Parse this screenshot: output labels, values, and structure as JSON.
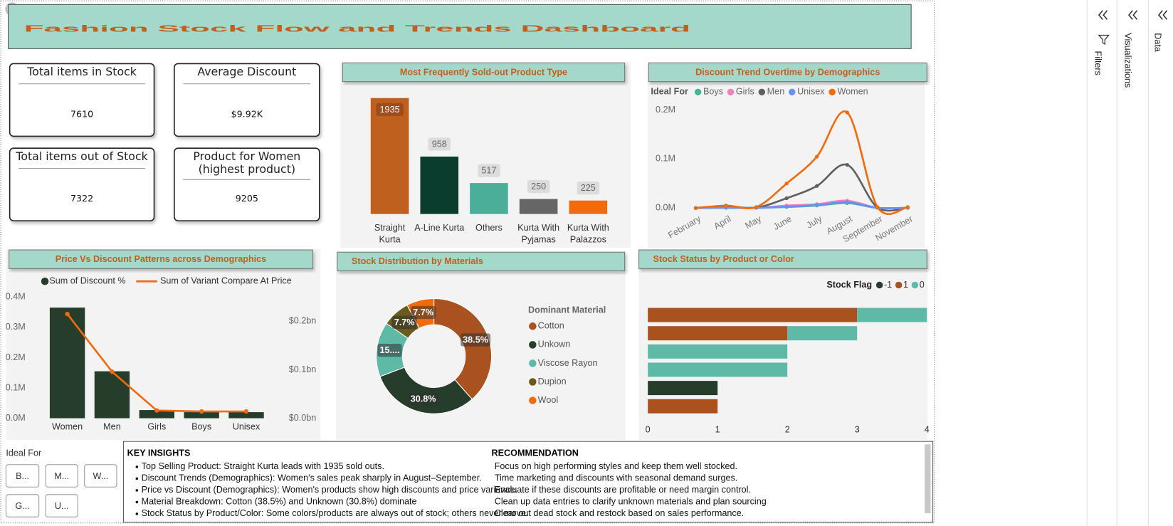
{
  "title": "Fashion Stock Flow and Trends Dashboard",
  "kpis": [
    {
      "label": "Total items in Stock",
      "value": 7610
    },
    {
      "label": "Average Discount",
      "value": "$9.92K"
    },
    {
      "label": "Total items out of Stock",
      "value": 7322
    },
    {
      "label": "Product for Women (highest product)",
      "value": 9205
    }
  ],
  "chart_data": [
    {
      "type": "bar",
      "title": "Most Frequently Sold-out Product Type",
      "categories": [
        "Straight Kurta",
        "A-Line Kurta",
        "Others",
        "Kurta With Pyjamas",
        "Kurta With Palazzos"
      ],
      "values": [
        1935,
        958,
        517,
        250,
        225
      ],
      "colors": [
        "#c0601f",
        "#0b3d2e",
        "#4aae98",
        "#666666",
        "#f26a0c"
      ]
    },
    {
      "type": "line",
      "title": "Discount Trend Overtime by Demographics",
      "legend_title": "Ideal For",
      "categories": [
        "February",
        "April",
        "May",
        "June",
        "July",
        "August",
        "September",
        "November"
      ],
      "series": [
        {
          "name": "Boys",
          "color": "#41b69a",
          "values": [
            0,
            500,
            300,
            2000,
            5000,
            10000,
            300,
            300
          ]
        },
        {
          "name": "Girls",
          "color": "#f47fbf",
          "values": [
            0,
            1000,
            500,
            5000,
            8000,
            15000,
            500,
            500
          ]
        },
        {
          "name": "Men",
          "color": "#606060",
          "values": [
            0,
            3000,
            1000,
            20000,
            45000,
            88000,
            1000,
            1000
          ]
        },
        {
          "name": "Unisex",
          "color": "#6b8ff5",
          "values": [
            0,
            500,
            300,
            3000,
            6000,
            12000,
            300,
            300
          ]
        },
        {
          "name": "Women",
          "color": "#f26a0c",
          "values": [
            0,
            5000,
            2000,
            50000,
            105000,
            195000,
            2000,
            2000
          ]
        }
      ],
      "ylim": [
        0,
        200000
      ],
      "yticks": [
        {
          "value": 0,
          "label": "0.0M"
        },
        {
          "value": 100000,
          "label": "0.1M"
        },
        {
          "value": 200000,
          "label": "0.2M"
        }
      ]
    },
    {
      "type": "combo",
      "title": "Price Vs Discount Patterns across Demographics",
      "categories": [
        "Women",
        "Men",
        "Girls",
        "Boys",
        "Unisex"
      ],
      "series": [
        {
          "name": "Sum of Discount %",
          "type": "bar",
          "color": "#263d2c",
          "values": [
            365000,
            155000,
            27000,
            20000,
            20000
          ]
        },
        {
          "name": "Sum of Variant Compare At Price",
          "type": "line",
          "axis": "y2",
          "color": "#f26a0c",
          "values": [
            0.215,
            0.096,
            0.016,
            0.014,
            0.014
          ]
        }
      ],
      "ylim": [
        0,
        400000
      ],
      "yticks": [
        {
          "value": 0,
          "label": "0.0M"
        },
        {
          "value": 100000,
          "label": "0.1M"
        },
        {
          "value": 200000,
          "label": "0.2M"
        },
        {
          "value": 300000,
          "label": "0.3M"
        },
        {
          "value": 400000,
          "label": "0.4M"
        }
      ],
      "y2lim": [
        0,
        0.25
      ],
      "y2ticks": [
        {
          "value": 0,
          "label": "$0.0bn"
        },
        {
          "value": 0.1,
          "label": "$0.1bn"
        },
        {
          "value": 0.2,
          "label": "$0.2bn"
        }
      ]
    },
    {
      "type": "pie",
      "donut": true,
      "title": "Stock Distribution by Materials",
      "legend_title": "Dominant Material",
      "categories": [
        "Cotton",
        "Unkown",
        "Viscose Rayon",
        "Dupion",
        "Wool"
      ],
      "values": [
        38.5,
        30.8,
        15.4,
        7.7,
        7.7
      ],
      "value_labels": [
        "38.5%",
        "30.8%",
        "15....",
        "7.7%",
        "7.7%"
      ],
      "colors": [
        "#a9521f",
        "#263d2c",
        "#5fb9a7",
        "#6b5a1e",
        "#f26a0c"
      ]
    },
    {
      "type": "stacked_barh",
      "title": "Stock Status by Product or Color",
      "legend_title": "Stock Flag",
      "categories": [
        null,
        null,
        null,
        null,
        null,
        null
      ],
      "series": [
        {
          "name": "-1",
          "color": "#263d2c",
          "values": [
            null,
            null,
            null,
            null,
            1,
            null
          ]
        },
        {
          "name": "1",
          "color": "#a9521f",
          "values": [
            3,
            2,
            null,
            null,
            null,
            1
          ]
        },
        {
          "name": "0",
          "color": "#5fb9a7",
          "values": [
            1,
            1,
            2,
            2,
            null,
            null
          ]
        }
      ],
      "xlim": [
        0,
        4
      ],
      "xticks": [
        0,
        1,
        2,
        3,
        4
      ]
    }
  ],
  "slicer": {
    "title": "Ideal For",
    "options": [
      "B...",
      "M...",
      "W...",
      "G...",
      "U..."
    ]
  },
  "insights": {
    "title": "KEY INSIGHTS",
    "items": [
      "Top Selling Product: Straight Kurta leads with 1935 sold outs.",
      "Discount Trends (Demographics): Women's sales peak sharply in August–September.",
      "Price vs Discount (Demographics): Women's products show high discounts and price variance.",
      "Material Breakdown: Cotton (38.5%) and Unknown (30.8%) dominate",
      "Stock Status by Product/Color: Some colors/products are always out of stock; others never move."
    ]
  },
  "recommendation": {
    "title": "RECOMMENDATION",
    "items": [
      "Focus on high performing styles and keep them well stocked.",
      "Time marketing and discounts with seasonal demand surges.",
      "Evaluate if these discounts are profitable or need margin control.",
      "Clean up data entries to clarify unknown materials and plan sourcing",
      "Clear out dead stock and restock based on sales performance."
    ]
  },
  "panes": [
    "Filters",
    "Visualizations",
    "Data"
  ]
}
